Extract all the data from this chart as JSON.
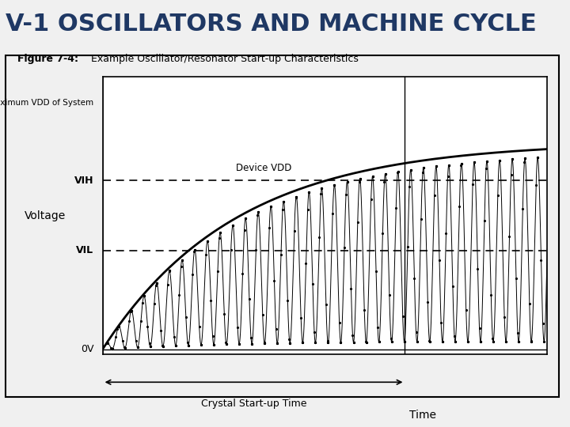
{
  "title": "V-1 OSCILLATORS AND MACHINE CYCLE",
  "title_color": "#1f3864",
  "title_fontsize": 22,
  "fig_caption": "Figure 7-4:",
  "fig_caption_desc": "Example Oscillator/Resonator Start-up Characteristics",
  "bg_color": "#f0f0f0",
  "panel_bg": "#ffffff",
  "VIH": 0.65,
  "VIL": 0.38,
  "VDD_max": 0.95,
  "VDD_device": 0.8,
  "ylabel": "Voltage",
  "xlabel": "Time",
  "label_0V": "0V",
  "label_VIL": "VIL",
  "label_VIH": "VIH",
  "label_MaxVDD": "Maximum VDD of System",
  "label_DevVDD": "Device VDD",
  "label_crystal": "Crystal Start-up Time"
}
